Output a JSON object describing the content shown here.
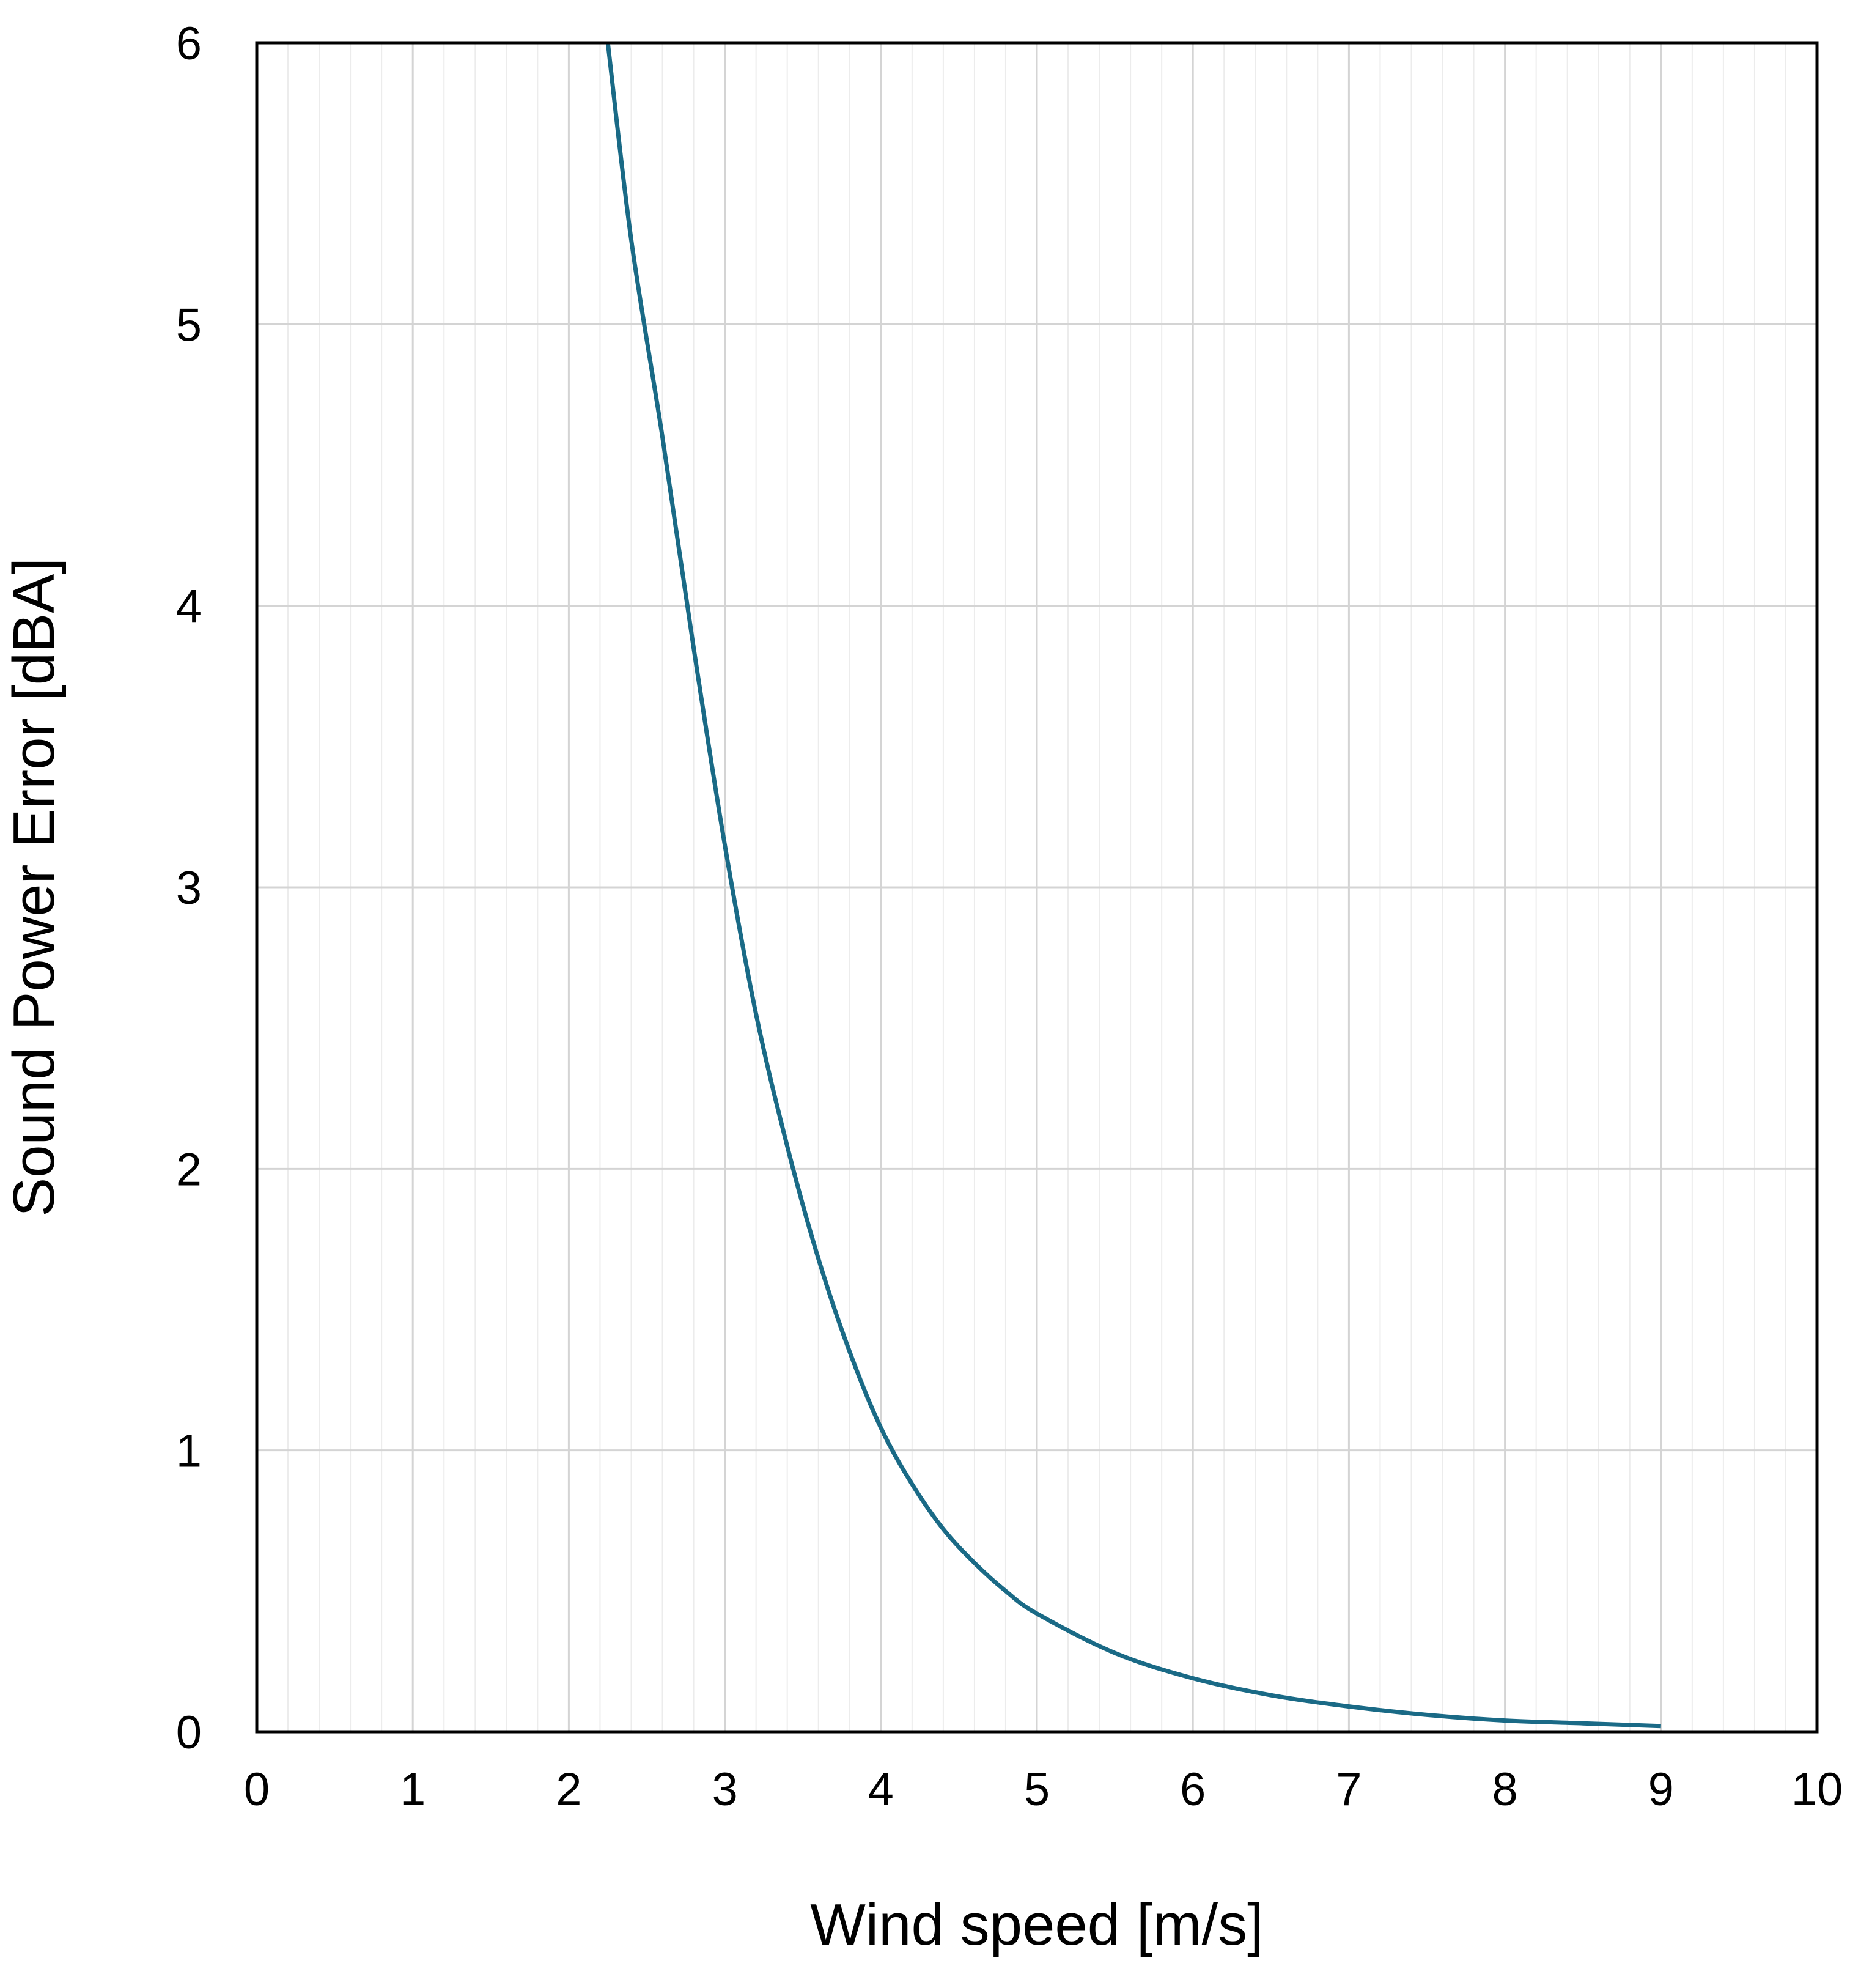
{
  "chart_data": {
    "type": "line",
    "xlabel": "Wind speed [m/s]",
    "ylabel": "Sound Power Error [dBA]",
    "xlim": [
      0,
      10
    ],
    "ylim": [
      0,
      6
    ],
    "xticks": [
      0,
      1,
      2,
      3,
      4,
      5,
      6,
      7,
      8,
      9,
      10
    ],
    "yticks": [
      0,
      1,
      2,
      3,
      4,
      5,
      6
    ],
    "x_minor_step": 0.2,
    "grid": true,
    "legend": "none",
    "series": [
      {
        "color": "#1a6a86",
        "x": [
          2.25,
          2.4,
          2.6,
          2.8,
          3.0,
          3.2,
          3.4,
          3.6,
          3.8,
          4.0,
          4.2,
          4.4,
          4.6,
          4.8,
          5.0,
          5.5,
          6.0,
          6.5,
          7.0,
          7.5,
          8.0,
          8.5,
          9.0
        ],
        "y": [
          6.0,
          5.3,
          4.6,
          3.85,
          3.15,
          2.55,
          2.08,
          1.68,
          1.35,
          1.08,
          0.88,
          0.72,
          0.6,
          0.5,
          0.42,
          0.28,
          0.19,
          0.13,
          0.09,
          0.06,
          0.04,
          0.03,
          0.02
        ]
      }
    ]
  }
}
